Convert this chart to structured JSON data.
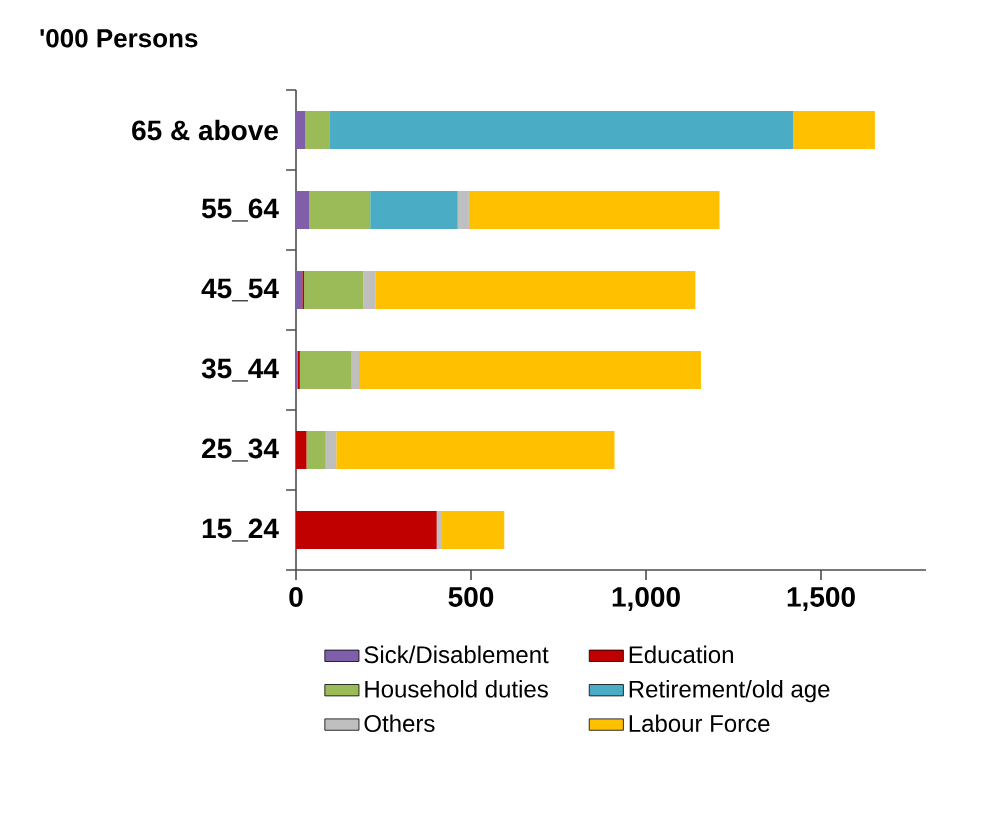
{
  "chart_data": {
    "type": "bar",
    "orientation": "horizontal",
    "stacked": true,
    "title": "'000 Persons",
    "categories": [
      "65 & above",
      "55_64",
      "45_54",
      "35_44",
      "25_34",
      "15_24"
    ],
    "series": [
      {
        "name": "Sick/Disablement",
        "color": "#7f5fa9",
        "values": [
          27,
          38,
          18,
          5,
          null,
          0
        ]
      },
      {
        "name": "Education",
        "color": "#c00000",
        "values": [
          0,
          0,
          5,
          6,
          30,
          402
        ]
      },
      {
        "name": "Household duties",
        "color": "#9bbb59",
        "values": [
          70,
          174,
          169,
          148,
          55,
          0
        ]
      },
      {
        "name": "Retirement/old age",
        "color": "#4bacc6",
        "values": [
          1324,
          250,
          0,
          0,
          0,
          0
        ]
      },
      {
        "name": "Others",
        "color": "#bfbfbf",
        "values": [
          0,
          32,
          36,
          21,
          30,
          15
        ]
      },
      {
        "name": "Labour Force",
        "color": "#ffc000",
        "values": [
          233,
          716,
          913,
          977,
          795,
          178
        ]
      }
    ],
    "xlim": [
      0,
      1800
    ],
    "xticks": [
      0,
      500,
      {
        "value": 1000,
        "label": "1,000"
      },
      {
        "value": 1500,
        "label": "1,500"
      }
    ],
    "grid": false,
    "legend": "bottom"
  }
}
